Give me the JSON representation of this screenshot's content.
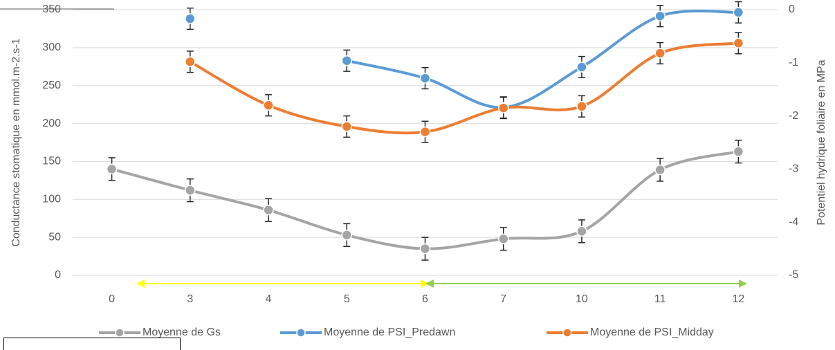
{
  "chart_data": {
    "type": "line",
    "y_label": "Conductance stomatique en mmol.m-2.s-1",
    "y2_label": "Potentiel hydrique foliaire en MPa",
    "categories": [
      "0",
      "3",
      "4",
      "5",
      "6",
      "7",
      "10",
      "11",
      "12"
    ],
    "ylim": [
      0,
      350
    ],
    "yticks": [
      0,
      50,
      100,
      150,
      200,
      250,
      300,
      350
    ],
    "y2lim": [
      -5,
      0
    ],
    "y2ticks": [
      0,
      -1,
      -2,
      -3,
      -4,
      -5
    ],
    "grid": true,
    "smooth": true,
    "error_bars": true,
    "legend": "bottom",
    "series": [
      {
        "name": "Moyenne de Gs",
        "color": "#a5a5a5",
        "values": [
          140,
          112,
          86,
          53,
          35,
          48,
          58,
          139,
          163
        ],
        "errors": [
          15,
          15,
          15,
          15,
          15,
          15,
          15,
          15,
          15
        ]
      },
      {
        "name": "Moyenne de PSI_Predawn",
        "color": "#5b9bd5",
        "axis": "y2",
        "values": [
          null,
          -0.17,
          null,
          -0.96,
          -1.29,
          -1.84,
          -1.08,
          -0.12,
          -0.05
        ],
        "errors": [
          null,
          0.2,
          null,
          0.2,
          0.2,
          0.2,
          0.2,
          0.2,
          0.2
        ]
      },
      {
        "name": "Moyenne de PSI_Midday",
        "color": "#ed7d31",
        "axis": "y2",
        "values": [
          null,
          -0.98,
          -1.8,
          -2.2,
          -2.3,
          -1.85,
          -1.82,
          -0.82,
          -0.63
        ],
        "errors": [
          null,
          0.2,
          0.2,
          0.2,
          0.2,
          0.2,
          0.2,
          0.2,
          0.2
        ]
      }
    ]
  }
}
